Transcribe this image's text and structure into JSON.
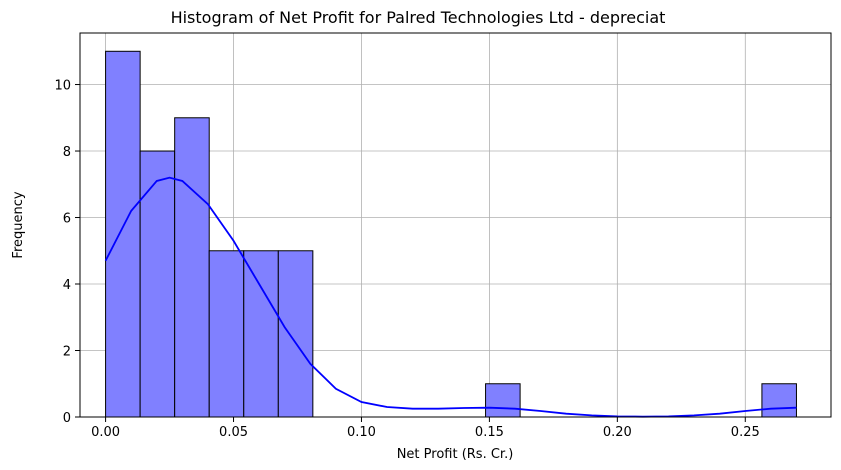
{
  "chart_data": {
    "type": "bar",
    "title": "Histogram of Net Profit for Palred Technologies Ltd - depreciat",
    "xlabel": "Net Profit (Rs. Cr.)",
    "ylabel": "Frequency",
    "xlim": [
      -0.01,
      0.2835
    ],
    "ylim": [
      0,
      11.55
    ],
    "grid": true,
    "colors": {
      "bar_fill": "#8080ff",
      "bar_edge": "#000000",
      "kde_line": "#0000ff",
      "grid": "#b0b0b0"
    },
    "x_ticks": [
      {
        "value": 0.0,
        "label": "0.00"
      },
      {
        "value": 0.05,
        "label": "0.05"
      },
      {
        "value": 0.1,
        "label": "0.10"
      },
      {
        "value": 0.15,
        "label": "0.15"
      },
      {
        "value": 0.2,
        "label": "0.20"
      },
      {
        "value": 0.25,
        "label": "0.25"
      }
    ],
    "y_ticks": [
      {
        "value": 0,
        "label": "0"
      },
      {
        "value": 2,
        "label": "2"
      },
      {
        "value": 4,
        "label": "4"
      },
      {
        "value": 6,
        "label": "6"
      },
      {
        "value": 8,
        "label": "8"
      },
      {
        "value": 10,
        "label": "10"
      }
    ],
    "bins": [
      {
        "start": 0.0,
        "end": 0.0135,
        "count": 11
      },
      {
        "start": 0.0135,
        "end": 0.027,
        "count": 8
      },
      {
        "start": 0.027,
        "end": 0.0405,
        "count": 9
      },
      {
        "start": 0.0405,
        "end": 0.054,
        "count": 5
      },
      {
        "start": 0.054,
        "end": 0.0675,
        "count": 5
      },
      {
        "start": 0.0675,
        "end": 0.081,
        "count": 5
      },
      {
        "start": 0.081,
        "end": 0.0945,
        "count": 0
      },
      {
        "start": 0.0945,
        "end": 0.108,
        "count": 0
      },
      {
        "start": 0.108,
        "end": 0.1215,
        "count": 0
      },
      {
        "start": 0.1215,
        "end": 0.135,
        "count": 0
      },
      {
        "start": 0.135,
        "end": 0.1485,
        "count": 0
      },
      {
        "start": 0.1485,
        "end": 0.162,
        "count": 1
      },
      {
        "start": 0.162,
        "end": 0.1755,
        "count": 0
      },
      {
        "start": 0.1755,
        "end": 0.189,
        "count": 0
      },
      {
        "start": 0.189,
        "end": 0.2025,
        "count": 0
      },
      {
        "start": 0.2025,
        "end": 0.216,
        "count": 0
      },
      {
        "start": 0.216,
        "end": 0.2295,
        "count": 0
      },
      {
        "start": 0.2295,
        "end": 0.243,
        "count": 0
      },
      {
        "start": 0.243,
        "end": 0.2565,
        "count": 0
      },
      {
        "start": 0.2565,
        "end": 0.27,
        "count": 1
      }
    ],
    "kde": {
      "x": [
        0.0,
        0.01,
        0.02,
        0.025,
        0.03,
        0.04,
        0.05,
        0.06,
        0.07,
        0.08,
        0.09,
        0.1,
        0.11,
        0.12,
        0.13,
        0.14,
        0.15,
        0.16,
        0.17,
        0.18,
        0.19,
        0.2,
        0.21,
        0.22,
        0.23,
        0.24,
        0.25,
        0.26,
        0.27
      ],
      "y": [
        4.7,
        6.2,
        7.1,
        7.2,
        7.1,
        6.4,
        5.3,
        4.0,
        2.7,
        1.6,
        0.85,
        0.45,
        0.3,
        0.25,
        0.25,
        0.27,
        0.28,
        0.25,
        0.18,
        0.1,
        0.05,
        0.02,
        0.01,
        0.02,
        0.05,
        0.1,
        0.18,
        0.25,
        0.28
      ]
    }
  }
}
